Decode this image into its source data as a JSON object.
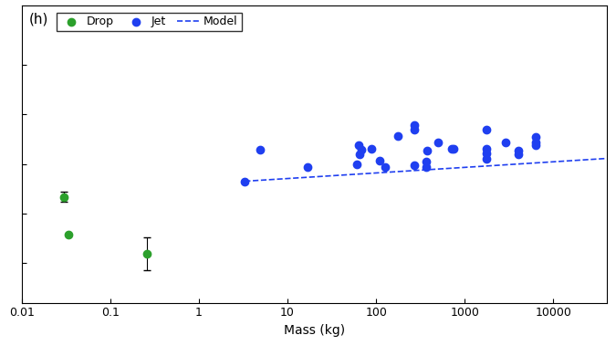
{
  "chart_data": {
    "type": "scatter",
    "annotations": [
      "(h)"
    ],
    "x_label": "Mass (kg)",
    "log": "x",
    "grid": false,
    "legend": "upper left",
    "tick_labels": "x",
    "xlim": [
      0.01,
      40000
    ],
    "xticks": [
      0.01,
      0.1,
      1,
      10,
      100,
      1000,
      10000
    ],
    "ylim": [
      0.2,
      6.2
    ],
    "yticks": [
      1,
      2,
      3,
      4,
      5
    ],
    "series": [
      {
        "name": "Drop",
        "type": "scatter",
        "color": "#2ca02c",
        "marker": "circle",
        "x": [
          0.03,
          0.034,
          0.26
        ],
        "values": [
          2.33,
          1.57,
          1.19
        ],
        "errors": [
          0.1,
          0,
          0.33
        ]
      },
      {
        "name": "Jet",
        "type": "scatter",
        "color": "#1f3ff0",
        "marker": "circle",
        "x": [
          3.3,
          4.9,
          16.7,
          61,
          64,
          65,
          68,
          89,
          109,
          125,
          175,
          267,
          272,
          272,
          364,
          380,
          364,
          500,
          713,
          745,
          1740,
          1740,
          1740,
          1760,
          2880,
          4000,
          4000,
          6300,
          6300,
          6300
        ],
        "values": [
          2.65,
          3.28,
          2.93,
          3.0,
          3.37,
          3.2,
          3.28,
          3.31,
          3.07,
          2.93,
          3.56,
          3.78,
          3.7,
          2.98,
          3.04,
          3.26,
          2.93,
          3.44,
          3.31,
          3.31,
          3.7,
          3.31,
          3.22,
          3.11,
          3.44,
          3.26,
          3.2,
          3.54,
          3.44,
          3.37
        ]
      },
      {
        "name": "Model",
        "type": "line",
        "color": "#1f3ff0",
        "line_style": "dashed",
        "x": [
          3.3,
          40000
        ],
        "values": [
          2.65,
          3.11
        ]
      }
    ]
  }
}
